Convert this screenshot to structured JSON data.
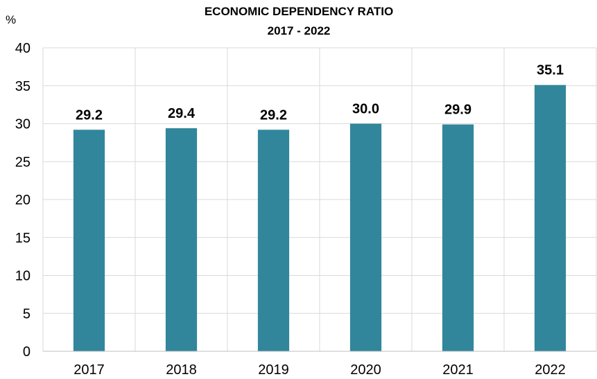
{
  "chart_data": {
    "type": "bar",
    "title": "ECONOMIC DEPENDENCY RATIO",
    "subtitle": "2017 - 2022",
    "ylabel": "%",
    "xlabel": "",
    "categories": [
      "2017",
      "2018",
      "2019",
      "2020",
      "2021",
      "2022"
    ],
    "values": [
      29.2,
      29.4,
      29.2,
      30.0,
      29.9,
      35.1
    ],
    "value_labels": [
      "29.2",
      "29.4",
      "29.2",
      "30.0",
      "29.9",
      "35.1"
    ],
    "ylim": [
      0,
      40
    ],
    "yticks": [
      0,
      5,
      10,
      15,
      20,
      25,
      30,
      35,
      40
    ],
    "grid": true,
    "legend": "none",
    "bar_color": "#31869B",
    "grid_color": "#D9D9D9"
  }
}
